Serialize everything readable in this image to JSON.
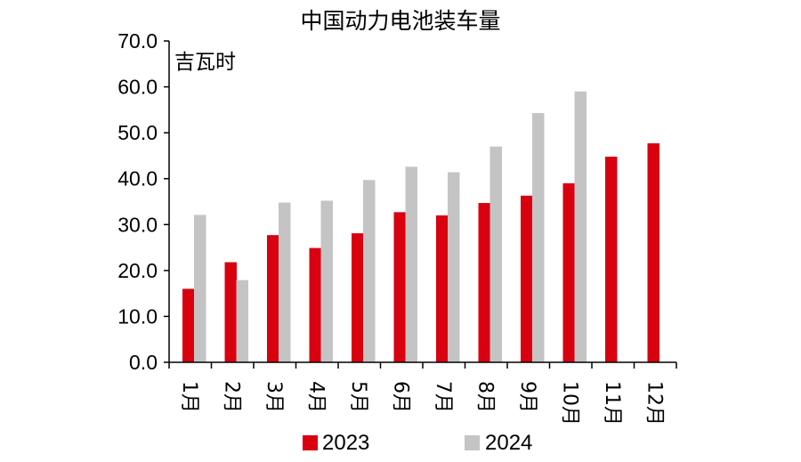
{
  "chart_data": {
    "type": "bar",
    "title": "中国动力电池装车量",
    "ylabel": "吉瓦时",
    "xlabel": "",
    "categories": [
      "1月",
      "2月",
      "3月",
      "4月",
      "5月",
      "6月",
      "7月",
      "8月",
      "9月",
      "10月",
      "11月",
      "12月"
    ],
    "series": [
      {
        "name": "2023",
        "color": "#d9000f",
        "values": [
          16.0,
          21.8,
          27.7,
          24.9,
          28.1,
          32.7,
          32.0,
          34.7,
          36.3,
          39.0,
          44.8,
          47.7
        ]
      },
      {
        "name": "2024",
        "color": "#c4c4c4",
        "values": [
          32.1,
          17.9,
          34.8,
          35.2,
          39.7,
          42.6,
          41.4,
          47.0,
          54.3,
          59.0,
          null,
          null
        ]
      }
    ],
    "ylim": [
      0,
      70
    ],
    "yticks": [
      "0.0",
      "10.0",
      "20.0",
      "30.0",
      "40.0",
      "50.0",
      "60.0",
      "70.0"
    ],
    "grid": false,
    "legend": "bottom"
  }
}
